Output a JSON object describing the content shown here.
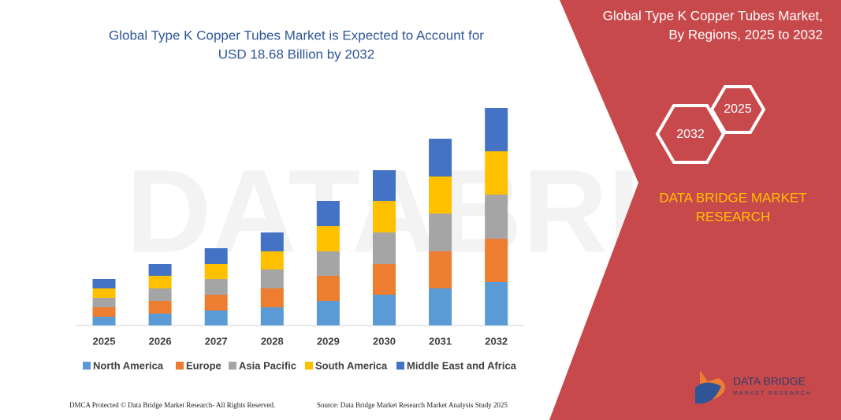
{
  "chart_data": {
    "type": "stacked_bar",
    "title": [
      "Global Type K Copper Tubes Market is Expected to Account for",
      "USD 18.68 Billion by 2032"
    ],
    "categories": [
      "2025",
      "2026",
      "2027",
      "2028",
      "2029",
      "2030",
      "2031",
      "2032"
    ],
    "series": [
      {
        "name": "North America",
        "color": "#5b9bd5",
        "values": [
          11,
          15,
          19,
          23,
          31,
          39,
          47,
          55
        ]
      },
      {
        "name": "Europe",
        "color": "#ed7d31",
        "values": [
          12,
          16,
          20,
          24,
          32,
          39,
          47,
          55
        ]
      },
      {
        "name": "Asia Pacific",
        "color": "#a5a5a5",
        "values": [
          12,
          16,
          20,
          24,
          31,
          40,
          48,
          56
        ]
      },
      {
        "name": "South America",
        "color": "#ffc000",
        "values": [
          12,
          16,
          19,
          23,
          32,
          40,
          47,
          55
        ]
      },
      {
        "name": "Middle East and Africa",
        "color": "#4472c4",
        "values": [
          12,
          15,
          20,
          24,
          32,
          39,
          48,
          55
        ]
      }
    ]
  },
  "panel": {
    "title": [
      "Global Type K Copper Tubes Market,",
      "By Regions, 2025 to 2032"
    ],
    "hex_small": "2025",
    "hex_large": "2032",
    "brand": [
      "DATA BRIDGE MARKET",
      "RESEARCH"
    ],
    "logo": [
      "DATA BRIDGE",
      "MARKET RESEARCH"
    ]
  },
  "footer": {
    "left": "DMCA Protected © Data Bridge Market Research- All Rights Reserved.",
    "right": "Source: Data Bridge Market Research Market Analysis Study 2025"
  }
}
